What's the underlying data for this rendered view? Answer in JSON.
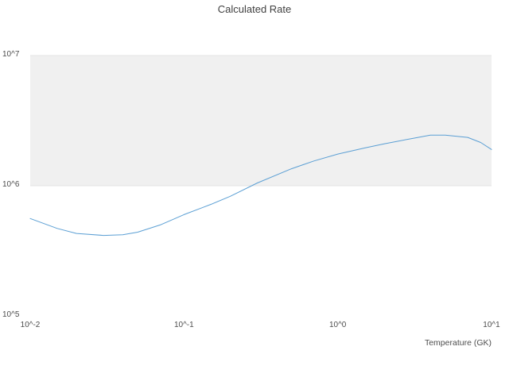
{
  "chart": {
    "title": "Calculated Rate",
    "x_axis_title": "Temperature (GK)"
  },
  "chart_data": {
    "type": "line",
    "title": "Calculated Rate",
    "xlabel": "Temperature (GK)",
    "ylabel": "",
    "x_scale": "log",
    "y_scale": "log",
    "xlim": [
      0.01,
      10
    ],
    "ylim": [
      100000,
      10000000
    ],
    "grid": "off",
    "legend": "none",
    "x_ticks": [
      {
        "value": 0.01,
        "label": "10^-2"
      },
      {
        "value": 0.1,
        "label": "10^-1"
      },
      {
        "value": 1,
        "label": "10^0"
      },
      {
        "value": 10,
        "label": "10^1"
      }
    ],
    "y_ticks": [
      {
        "value": 100000,
        "label": "10^5"
      },
      {
        "value": 1000000,
        "label": "10^6"
      },
      {
        "value": 10000000,
        "label": "10^7"
      }
    ],
    "shaded_band": {
      "y_from": 1000000,
      "y_to": 10000000,
      "color": "#f0f0f0",
      "edge_color": "#e3e3e3"
    },
    "series": [
      {
        "name": "calculated-rate",
        "color": "#5b9fd4",
        "x": [
          0.01,
          0.015,
          0.02,
          0.03,
          0.04,
          0.05,
          0.07,
          0.1,
          0.15,
          0.2,
          0.3,
          0.5,
          0.7,
          1,
          1.5,
          2,
          3,
          4,
          5,
          7,
          8.5,
          10
        ],
        "y": [
          560000,
          470000,
          430000,
          415000,
          420000,
          440000,
          500000,
          600000,
          720000,
          830000,
          1050000,
          1350000,
          1550000,
          1750000,
          1950000,
          2100000,
          2300000,
          2450000,
          2450000,
          2350000,
          2150000,
          1900000
        ]
      }
    ]
  }
}
